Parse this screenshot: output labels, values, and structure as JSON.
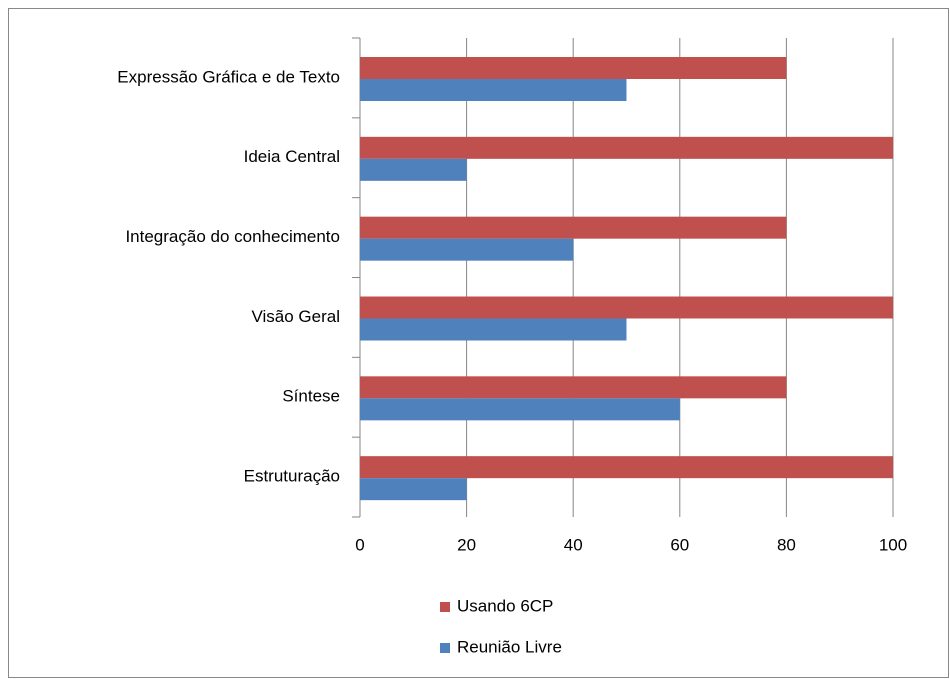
{
  "chart_data": {
    "type": "bar",
    "orientation": "horizontal",
    "categories": [
      "Expressão Gráfica e de Texto",
      "Ideia Central",
      "Integração do conhecimento",
      "Visão Geral",
      "Síntese",
      "Estruturação"
    ],
    "series": [
      {
        "name": "Usando 6CP",
        "color": "#c0504d",
        "values": [
          80,
          100,
          80,
          100,
          80,
          100
        ]
      },
      {
        "name": "Reunião Livre",
        "color": "#4f81bd",
        "values": [
          50,
          20,
          40,
          50,
          60,
          20
        ]
      }
    ],
    "xlim": [
      0,
      100
    ],
    "xticks": [
      0,
      20,
      40,
      60,
      80,
      100
    ],
    "grid": true,
    "legend": "bottom"
  }
}
